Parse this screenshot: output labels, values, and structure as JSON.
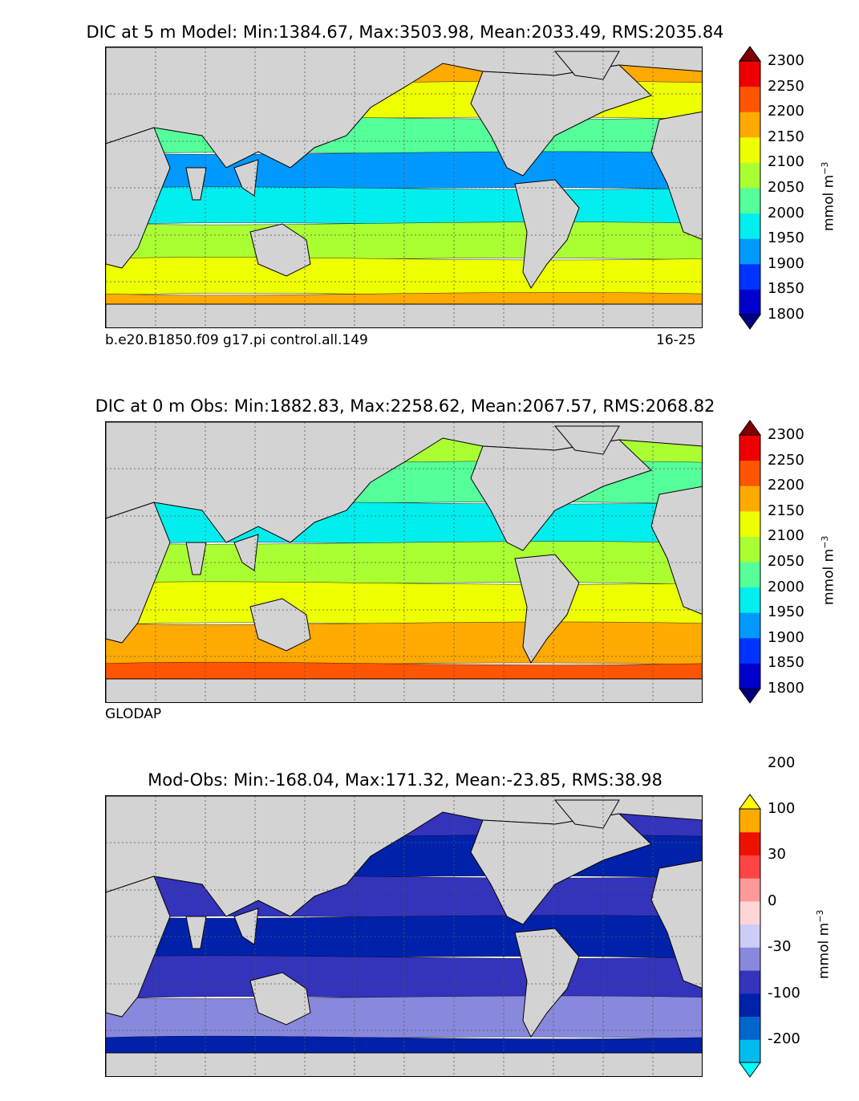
{
  "panels": [
    {
      "id": "model",
      "title": "DIC at 5 m Model: Min:1384.67, Max:3503.98, Mean:2033.49, RMS:2035.84",
      "footer_left": "b.e20.B1850.f09 g17.pi control.all.149",
      "footer_right": "16-25",
      "units": "mmol m",
      "units_exp": "−3",
      "colorbar": {
        "levels": [
          "1800",
          "1850",
          "1900",
          "1950",
          "2000",
          "2050",
          "2100",
          "2150",
          "2200",
          "2250",
          "2300"
        ],
        "colors": [
          "#00007f",
          "#0000cd",
          "#0033ff",
          "#0099ff",
          "#00eeee",
          "#55ff99",
          "#aaff33",
          "#eeff00",
          "#ffaa00",
          "#ff5500",
          "#ee0000",
          "#7f0000"
        ]
      },
      "bands": [
        {
          "color": "#ffaa00"
        },
        {
          "color": "#eeff00"
        },
        {
          "color": "#55ff99"
        },
        {
          "color": "#0099ff"
        },
        {
          "color": "#00eeee"
        },
        {
          "color": "#aaff33"
        },
        {
          "color": "#eeff00"
        },
        {
          "color": "#ffaa00"
        }
      ]
    },
    {
      "id": "obs",
      "title": "DIC at 0 m Obs: Min:1882.83, Max:2258.62, Mean:2067.57, RMS:2068.82",
      "footer_left": "GLODAP",
      "footer_right": "",
      "units": "mmol m",
      "units_exp": "−3",
      "colorbar": {
        "levels": [
          "1800",
          "1850",
          "1900",
          "1950",
          "2000",
          "2050",
          "2100",
          "2150",
          "2200",
          "2250",
          "2300"
        ],
        "colors": [
          "#00007f",
          "#0000cd",
          "#0033ff",
          "#0099ff",
          "#00eeee",
          "#55ff99",
          "#aaff33",
          "#eeff00",
          "#ffaa00",
          "#ff5500",
          "#ee0000",
          "#7f0000"
        ]
      },
      "bands": [
        {
          "color": "#aaff33"
        },
        {
          "color": "#55ff99"
        },
        {
          "color": "#00eeee"
        },
        {
          "color": "#aaff33"
        },
        {
          "color": "#eeff00"
        },
        {
          "color": "#ffaa00"
        },
        {
          "color": "#ff5500"
        }
      ]
    },
    {
      "id": "diff",
      "title": "Mod-Obs: Min:-168.04, Max:171.32, Mean:-23.85, RMS:38.98",
      "footer_left": "",
      "footer_right": "",
      "units": "mmol m",
      "units_exp": "−3",
      "colorbar": {
        "levels": [
          "-200",
          "-100",
          "-30",
          "0",
          "30",
          "100",
          "200"
        ],
        "colors": [
          "#00ffff",
          "#00bbee",
          "#0066cc",
          "#0022aa",
          "#3333bb",
          "#8888dd",
          "#ccccf5",
          "#ffd5d5",
          "#ff9999",
          "#ff4444",
          "#ee1100",
          "#ffaa00",
          "#ffff00"
        ]
      },
      "bands": [
        {
          "color": "#3333bb"
        },
        {
          "color": "#0022aa"
        },
        {
          "color": "#3333bb"
        },
        {
          "color": "#0022aa"
        },
        {
          "color": "#3333bb"
        },
        {
          "color": "#8888dd"
        },
        {
          "color": "#0022aa"
        }
      ]
    }
  ]
}
